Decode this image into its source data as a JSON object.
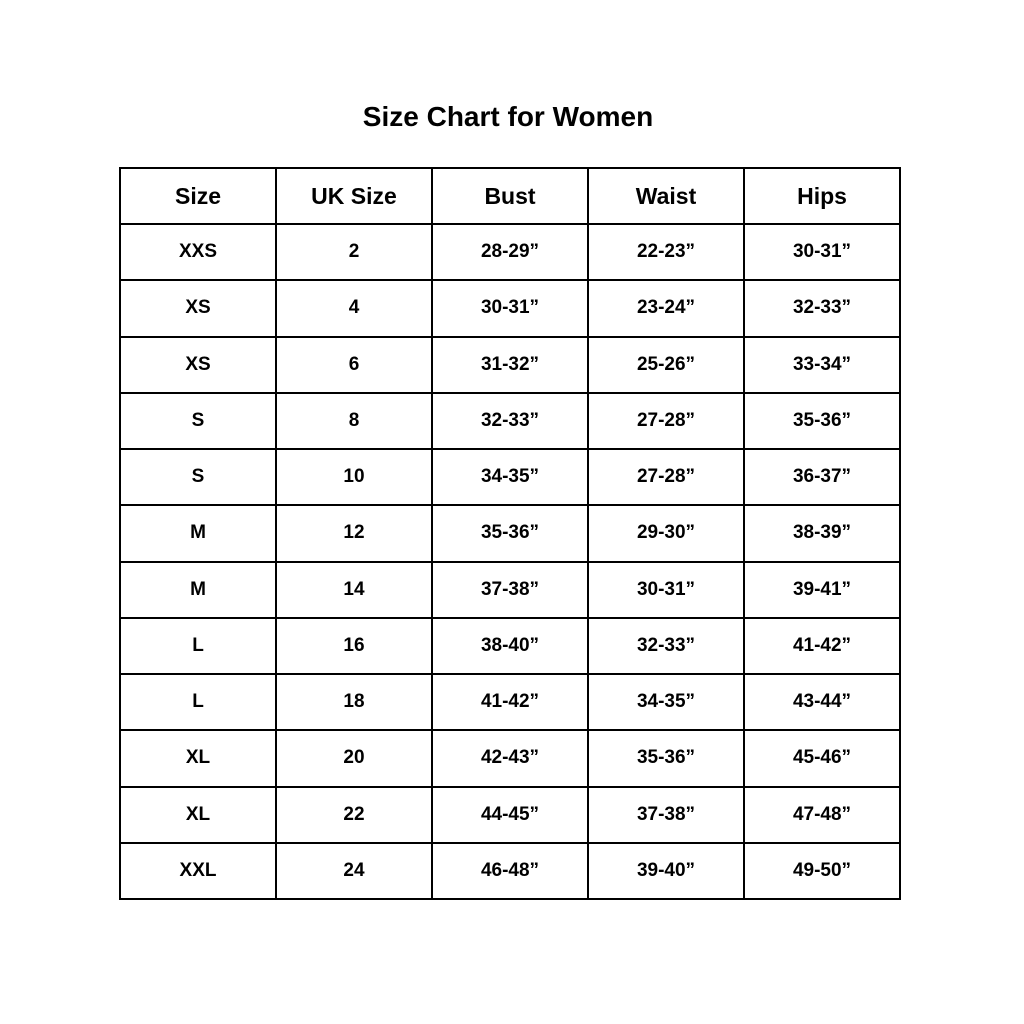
{
  "title": "Size Chart for Women",
  "headers": [
    "Size",
    "UK Size",
    "Bust",
    "Waist",
    "Hips"
  ],
  "rows": [
    [
      "XXS",
      "2",
      "28-29”",
      "22-23”",
      "30-31”"
    ],
    [
      "XS",
      "4",
      "30-31”",
      "23-24”",
      "32-33”"
    ],
    [
      "XS",
      "6",
      "31-32”",
      "25-26”",
      "33-34”"
    ],
    [
      "S",
      "8",
      "32-33”",
      "27-28”",
      "35-36”"
    ],
    [
      "S",
      "10",
      "34-35”",
      "27-28”",
      "36-37”"
    ],
    [
      "M",
      "12",
      "35-36”",
      "29-30”",
      "38-39”"
    ],
    [
      "M",
      "14",
      "37-38”",
      "30-31”",
      "39-41”"
    ],
    [
      "L",
      "16",
      "38-40”",
      "32-33”",
      "41-42”"
    ],
    [
      "L",
      "18",
      "41-42”",
      "34-35”",
      "43-44”"
    ],
    [
      "XL",
      "20",
      "42-43”",
      "35-36”",
      "45-46”"
    ],
    [
      "XL",
      "22",
      "44-45”",
      "37-38”",
      "47-48”"
    ],
    [
      "XXL",
      "24",
      "46-48”",
      "39-40”",
      "49-50”"
    ]
  ]
}
